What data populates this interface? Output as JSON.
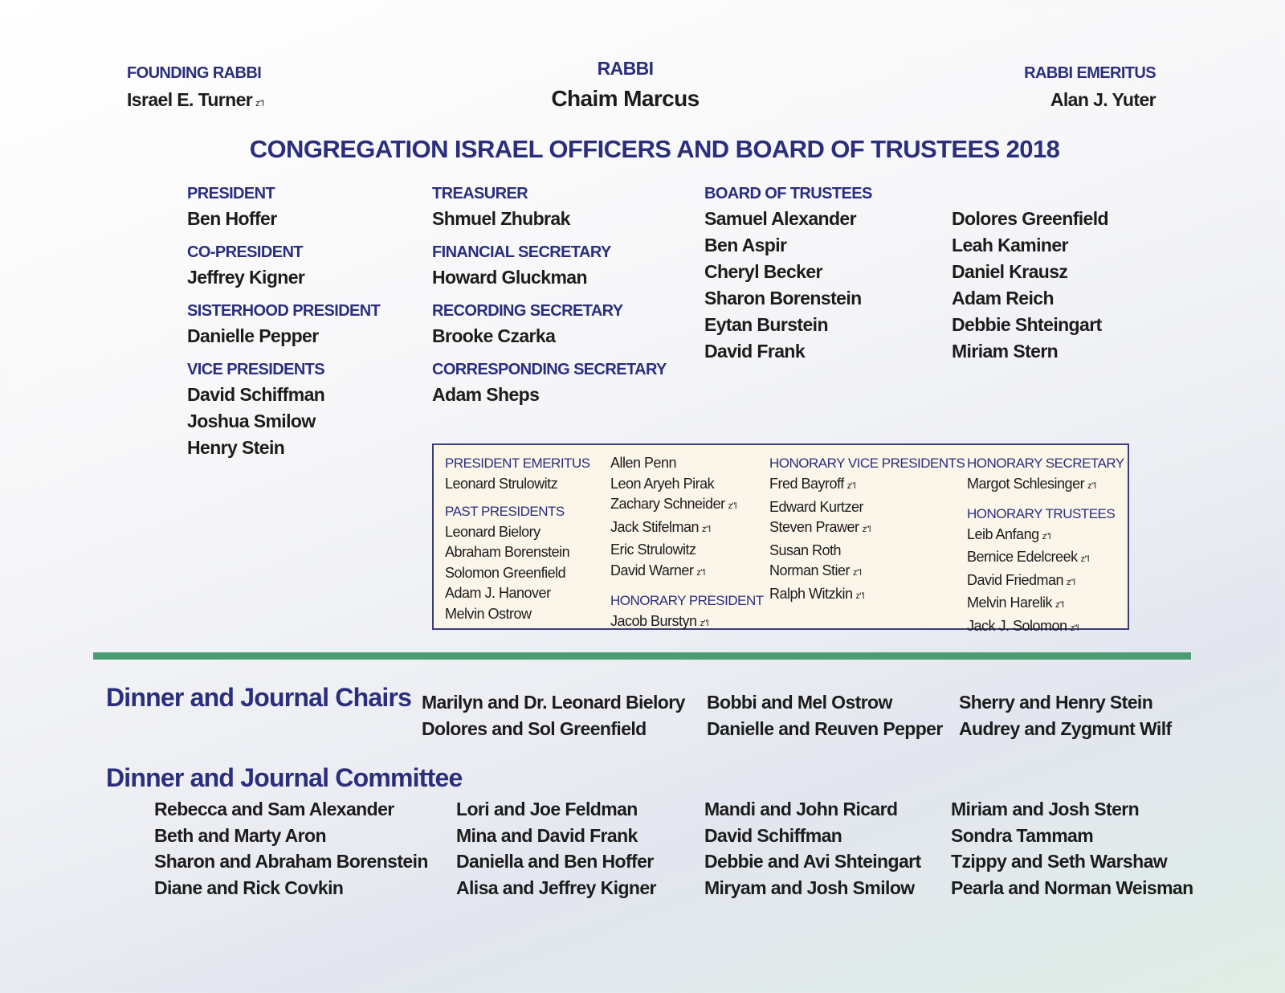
{
  "memorial_marker": "z\"l",
  "colors": {
    "heading": "#2b2e7c",
    "rule": "#4c9c72",
    "box_bg": "#fbf5ea"
  },
  "rabbis": {
    "founding": {
      "label": "FOUNDING RABBI",
      "name": "Israel E. Turner",
      "deceased": true
    },
    "current": {
      "label": "RABBI",
      "name": "Chaim Marcus"
    },
    "emeritus": {
      "label": "RABBI EMERITUS",
      "name": "Alan J. Yuter"
    }
  },
  "title": "CONGREGATION ISRAEL OFFICERS AND BOARD OF TRUSTEES 2018",
  "officer_columns": [
    [
      {
        "label": "PRESIDENT",
        "names": [
          "Ben Hoffer"
        ]
      },
      {
        "label": "CO-PRESIDENT",
        "names": [
          "Jeffrey Kigner"
        ]
      },
      {
        "label": "SISTERHOOD PRESIDENT",
        "names": [
          "Danielle Pepper"
        ]
      },
      {
        "label": "VICE PRESIDENTS",
        "names": [
          "David Schiffman",
          "Joshua Smilow",
          "Henry Stein"
        ]
      }
    ],
    [
      {
        "label": "TREASURER",
        "names": [
          "Shmuel Zhubrak"
        ]
      },
      {
        "label": "FINANCIAL SECRETARY",
        "names": [
          "Howard Gluckman"
        ]
      },
      {
        "label": "RECORDING SECRETARY",
        "names": [
          "Brooke Czarka"
        ]
      },
      {
        "label": "CORRESPONDING SECRETARY",
        "names": [
          "Adam Sheps"
        ]
      }
    ],
    [
      {
        "label": "BOARD OF TRUSTEES",
        "names": [
          "Samuel Alexander",
          "Ben Aspir",
          "Cheryl Becker",
          "Sharon Borenstein",
          "Eytan Burstein",
          "David Frank"
        ]
      }
    ],
    [
      {
        "label": "",
        "names": [
          "Dolores Greenfield",
          "Leah Kaminer",
          "Daniel Krausz",
          "Adam Reich",
          "Debbie Shteingart",
          "Miriam Stern"
        ]
      }
    ]
  ],
  "honorary_box": [
    [
      {
        "label": "PRESIDENT EMERITUS",
        "names": [
          {
            "n": "Leonard Strulowitz"
          }
        ]
      },
      {
        "label": "PAST PRESIDENTS",
        "names": [
          {
            "n": "Leonard Bielory"
          },
          {
            "n": "Abraham Borenstein"
          },
          {
            "n": "Solomon Greenfield"
          },
          {
            "n": "Adam J. Hanover"
          },
          {
            "n": "Melvin Ostrow"
          }
        ]
      }
    ],
    [
      {
        "label": "",
        "names": [
          {
            "n": "Allen Penn"
          },
          {
            "n": "Leon Aryeh Pirak"
          },
          {
            "n": "Zachary Schneider",
            "z": true
          },
          {
            "n": "Jack Stifelman",
            "z": true
          },
          {
            "n": "Eric Strulowitz"
          },
          {
            "n": "David Warner",
            "z": true
          }
        ]
      },
      {
        "label": "HONORARY PRESIDENT",
        "names": [
          {
            "n": "Jacob Burstyn",
            "z": true
          }
        ]
      }
    ],
    [
      {
        "label": "HONORARY VICE PRESIDENTS",
        "names": [
          {
            "n": "Fred Bayroff",
            "z": true
          },
          {
            "n": "Edward Kurtzer"
          },
          {
            "n": "Steven Prawer",
            "z": true
          },
          {
            "n": "Susan Roth"
          },
          {
            "n": "Norman Stier",
            "z": true
          },
          {
            "n": "Ralph Witzkin",
            "z": true
          }
        ]
      }
    ],
    [
      {
        "label": "HONORARY SECRETARY",
        "names": [
          {
            "n": "Margot Schlesinger",
            "z": true
          }
        ]
      },
      {
        "label": "HONORARY TRUSTEES",
        "names": [
          {
            "n": "Leib Anfang",
            "z": true
          },
          {
            "n": "Bernice Edelcreek",
            "z": true
          },
          {
            "n": "David Friedman",
            "z": true
          },
          {
            "n": "Melvin Harelik",
            "z": true
          },
          {
            "n": "Jack J. Solomon",
            "z": true
          }
        ]
      }
    ]
  ],
  "chairs": {
    "heading": "Dinner and Journal Chairs",
    "columns": [
      [
        "Marilyn and Dr. Leonard Bielory",
        "Dolores and Sol Greenfield"
      ],
      [
        "Bobbi and Mel Ostrow",
        "Danielle and Reuven Pepper"
      ],
      [
        "Sherry and Henry Stein",
        "Audrey and Zygmunt Wilf"
      ]
    ]
  },
  "committee": {
    "heading": "Dinner and Journal Committee",
    "columns": [
      [
        "Rebecca and Sam Alexander",
        "Beth and Marty Aron",
        "Sharon and Abraham Borenstein",
        "Diane and Rick Covkin"
      ],
      [
        "Lori and Joe Feldman",
        "Mina and David Frank",
        "Daniella and Ben Hoffer",
        "Alisa and Jeffrey Kigner"
      ],
      [
        "Mandi and John Ricard",
        "David Schiffman",
        "Debbie and Avi Shteingart",
        "Miryam and Josh Smilow"
      ],
      [
        "Miriam and Josh Stern",
        "Sondra Tammam",
        "Tzippy and Seth Warshaw",
        "Pearla and Norman Weisman"
      ]
    ]
  }
}
